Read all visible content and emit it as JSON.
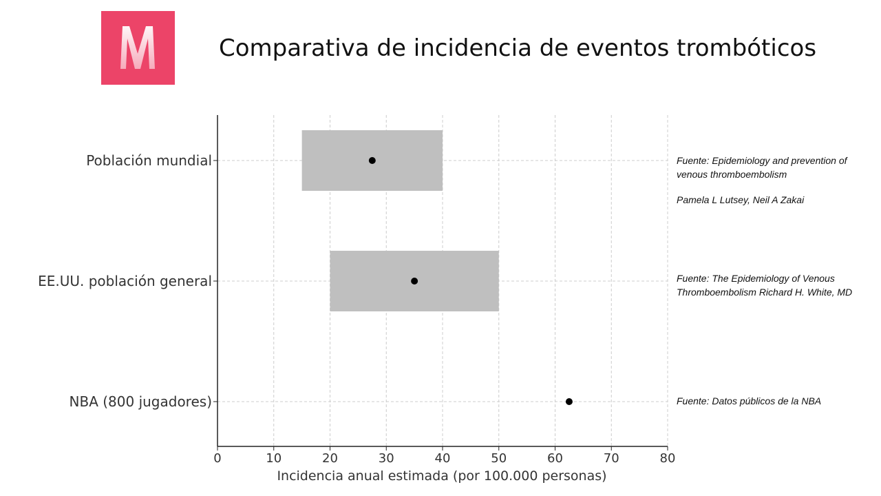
{
  "slide": {
    "title": "Comparativa de incidencia de eventos trombóticos",
    "logo_letter": "M",
    "brand_color": "#ec4468"
  },
  "sources": [
    "Fuente: Epidemiology and prevention of venous thromboembolism",
    "Pamela L Lutsey, Neil A Zakai",
    "Fuente: The Epidemiology of Venous Thromboembolism Richard H. White, MD",
    "Fuente: Datos públicos de la NBA"
  ],
  "chart_data": {
    "type": "scatter",
    "categories": [
      "Población mundial",
      "EE.UU. población general",
      "NBA (800 jugadores)"
    ],
    "points": [
      27.5,
      35,
      62.5
    ],
    "ranges": [
      [
        15,
        40
      ],
      [
        20,
        50
      ],
      null
    ],
    "xlabel": "Incidencia anual estimada (por 100.000 personas)",
    "xlim": [
      0,
      80
    ],
    "xticks": [
      0,
      10,
      20,
      30,
      40,
      50,
      60,
      70,
      80
    ],
    "grid": true,
    "range_color": "#bfbfbf",
    "point_color": "#000000"
  }
}
